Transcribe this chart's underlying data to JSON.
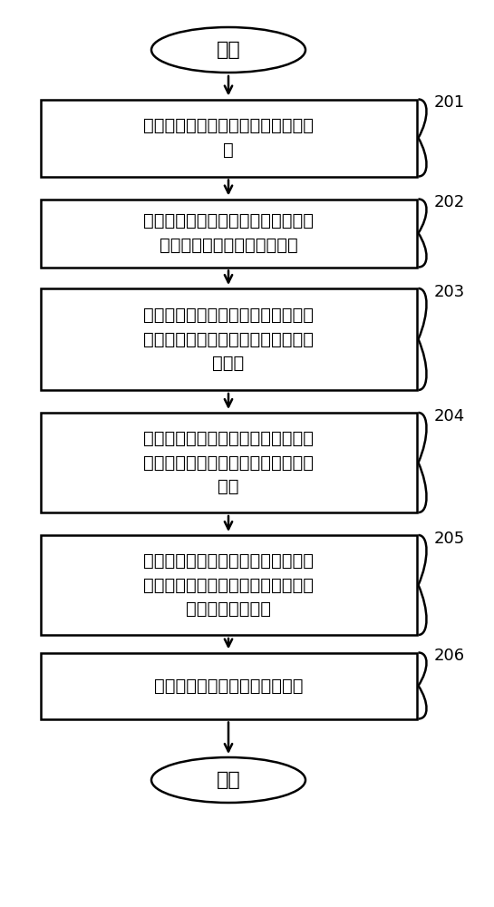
{
  "background_color": "#ffffff",
  "start_end_label": [
    "开始",
    "结束"
  ],
  "box_labels": [
    "移动终端通过扫码获取电视终端的标\n识",
    "移动终端将自身的标识和获取的电视\n终端的标识发送到切屏服务器",
    "切屏服务器根据移动终端的标识和电\n视终端的标识，将移动终端和电视终\n端绑定",
    "用户通过移动终端浏览网站内容，获\n取内容源，并向切屏服务器发出切屏\n指令",
    "切屏服务器收到切屏指令之后，将移\n动终端获取的内容源传递到与移动终\n端绑定的电视终端",
    "电视终端向内容源发出展示请求"
  ],
  "step_numbers": [
    "201",
    "202",
    "203",
    "204",
    "205",
    "206"
  ],
  "box_color": "#ffffff",
  "box_edge_color": "#000000",
  "text_color": "#000000",
  "arrow_color": "#000000",
  "font_size": 14,
  "step_font_size": 13,
  "oval_font_size": 16
}
